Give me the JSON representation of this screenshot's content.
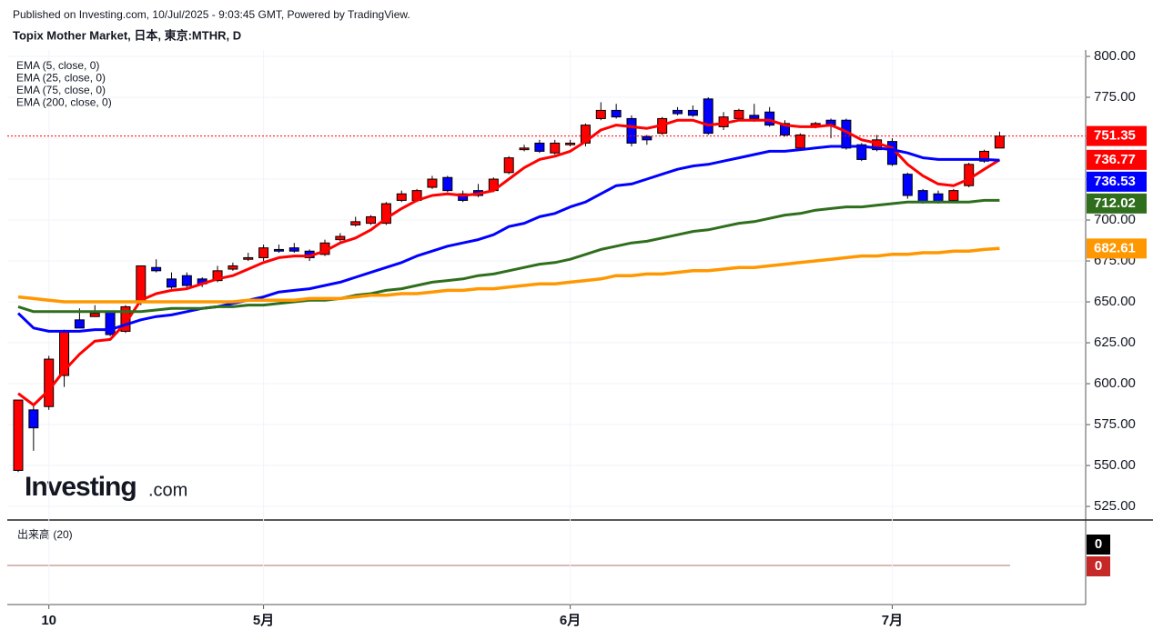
{
  "header": {
    "published": "Published on Investing.com, 10/Jul/2025 - 9:03:45 GMT, Powered by TradingView."
  },
  "watermark": {
    "name": "Investing",
    "suffix": ".com"
  },
  "chart_data": {
    "type": "candlestick",
    "title": "Topix Mother Market, 日本, 東京:MTHR, D",
    "categories": [
      null,
      null,
      "10",
      null,
      null,
      null,
      null,
      null,
      null,
      null,
      null,
      null,
      null,
      null,
      null,
      null,
      "5月",
      null,
      null,
      null,
      null,
      null,
      null,
      null,
      null,
      null,
      null,
      null,
      null,
      null,
      null,
      null,
      null,
      null,
      null,
      null,
      "6月",
      null,
      null,
      null,
      null,
      null,
      null,
      null,
      null,
      null,
      null,
      null,
      null,
      null,
      null,
      null,
      null,
      null,
      null,
      null,
      null,
      "7月",
      null,
      null,
      null,
      null,
      null,
      null,
      null
    ],
    "open": [
      547,
      584,
      586,
      605,
      639,
      641,
      644,
      632,
      650,
      671,
      664,
      666,
      664,
      663,
      670,
      676,
      677,
      682,
      683,
      681,
      679,
      688,
      697,
      698,
      698,
      712,
      712,
      720,
      726,
      716,
      718,
      718,
      729,
      743,
      747,
      741,
      746,
      747,
      762,
      767,
      762,
      751,
      753,
      767,
      767,
      774,
      757,
      762,
      764,
      766,
      759,
      744,
      757,
      761,
      761,
      746,
      743,
      748,
      728,
      718,
      716,
      712,
      721,
      736,
      744
    ],
    "high": [
      590,
      587,
      617,
      633,
      646,
      648,
      644,
      648,
      672,
      676,
      668,
      668,
      665,
      672,
      674,
      680,
      685,
      685,
      686,
      682,
      688,
      692,
      702,
      703,
      711,
      718,
      719,
      727,
      727,
      718,
      722,
      726,
      739,
      746,
      749,
      749,
      749,
      759,
      772,
      771,
      764,
      752,
      763,
      769,
      770,
      775,
      766,
      768,
      771,
      769,
      761,
      753,
      760,
      762,
      762,
      747,
      752,
      750,
      729,
      719,
      718,
      719,
      735,
      743,
      754
    ],
    "low": [
      546,
      559,
      584,
      598,
      634,
      641,
      629,
      631,
      648,
      668,
      658,
      658,
      659,
      662,
      669,
      675,
      675,
      680,
      680,
      675,
      678,
      687,
      696,
      697,
      697,
      711,
      711,
      719,
      717,
      711,
      714,
      717,
      728,
      742,
      741,
      740,
      745,
      745,
      761,
      762,
      745,
      746,
      752,
      764,
      763,
      752,
      755,
      761,
      760,
      757,
      751,
      743,
      756,
      750,
      743,
      736,
      742,
      733,
      713,
      710,
      710,
      711,
      720,
      735,
      744
    ],
    "close": [
      590,
      573,
      615,
      632,
      634,
      643,
      630,
      647,
      672,
      669,
      659,
      660,
      661,
      669,
      672,
      677,
      683,
      681,
      681,
      677,
      686,
      690,
      699,
      702,
      710,
      716,
      718,
      725,
      718,
      712,
      715,
      725,
      738,
      744,
      742,
      747,
      747,
      758,
      767,
      763,
      747,
      749,
      762,
      765,
      764,
      753,
      763,
      767,
      762,
      758,
      752,
      752,
      759,
      758,
      744,
      737,
      749,
      734,
      715,
      711,
      711,
      718,
      734,
      742,
      751.35
    ],
    "up_color": "#ff0000",
    "down_color": "#0000ff",
    "series": [
      {
        "name": "EMA (5, close, 0)",
        "color": "#ff0000",
        "values": [
          594,
          587,
          596,
          608,
          618,
          626,
          627,
          637,
          651,
          655,
          657,
          658,
          661,
          664,
          666,
          670,
          674,
          677,
          678,
          678,
          681,
          686,
          689,
          694,
          701,
          707,
          712,
          715,
          716,
          715,
          716,
          718,
          725,
          732,
          737,
          739,
          742,
          748,
          755,
          758,
          757,
          756,
          758,
          761,
          761,
          758,
          759,
          761,
          761,
          761,
          758,
          757,
          757,
          758,
          754,
          749,
          747,
          744,
          734,
          727,
          722,
          721,
          725,
          731,
          736.77
        ]
      },
      {
        "name": "EMA (25, close, 0)",
        "color": "#0000ff",
        "values": [
          643,
          634,
          632,
          632,
          632,
          633,
          633,
          636,
          639,
          641,
          642,
          644,
          646,
          647,
          649,
          651,
          653,
          656,
          657,
          658,
          660,
          662,
          665,
          668,
          671,
          674,
          678,
          681,
          684,
          686,
          688,
          691,
          696,
          698,
          702,
          704,
          708,
          711,
          716,
          721,
          722,
          725,
          728,
          731,
          733,
          734,
          736,
          738,
          740,
          742,
          742,
          743,
          744,
          745,
          745,
          745,
          744,
          743,
          741,
          738,
          737,
          737,
          737,
          737,
          736.53
        ]
      },
      {
        "name": "EMA (75, close, 0)",
        "color": "#2f6e1c",
        "values": [
          647,
          644,
          644,
          644,
          644,
          644,
          644,
          644,
          644,
          645,
          646,
          646,
          646,
          647,
          647,
          648,
          648,
          649,
          650,
          651,
          651,
          652,
          654,
          655,
          657,
          658,
          660,
          662,
          663,
          664,
          666,
          667,
          669,
          671,
          673,
          674,
          676,
          679,
          682,
          684,
          686,
          687,
          689,
          691,
          693,
          694,
          696,
          698,
          699,
          701,
          703,
          704,
          706,
          707,
          708,
          708,
          709,
          710,
          711,
          711,
          711,
          711,
          711,
          712,
          712.02
        ]
      },
      {
        "name": "EMA (200, close, 0)",
        "color": "#ff9800",
        "values": [
          653,
          652,
          651,
          650,
          650,
          650,
          650,
          650,
          650,
          650,
          650,
          650,
          650,
          650,
          650,
          651,
          651,
          651,
          651,
          652,
          652,
          652,
          653,
          654,
          654,
          655,
          655,
          656,
          657,
          657,
          658,
          658,
          659,
          660,
          661,
          661,
          662,
          663,
          664,
          666,
          666,
          667,
          667,
          668,
          669,
          669,
          670,
          671,
          671,
          672,
          673,
          674,
          675,
          676,
          677,
          678,
          678,
          679,
          679,
          680,
          680,
          681,
          681,
          682,
          682.61
        ]
      }
    ],
    "ylim": [
      516.7,
      803.9
    ],
    "yticks": [
      {
        "value": 525,
        "label": "525.00"
      },
      {
        "value": 550,
        "label": "550.00"
      },
      {
        "value": 575,
        "label": "575.00"
      },
      {
        "value": 600,
        "label": "600.00"
      },
      {
        "value": 625,
        "label": "625.00"
      },
      {
        "value": 650,
        "label": "650.00"
      },
      {
        "value": 675,
        "label": "675.00"
      },
      {
        "value": 700,
        "label": "700.00"
      },
      {
        "value": 725,
        "label": "725.00"
      },
      {
        "value": 750,
        "label": "750.00"
      },
      {
        "value": 775,
        "label": "775.00"
      },
      {
        "value": 800,
        "label": "800.00"
      }
    ],
    "grid": true,
    "volume": {
      "title": "出来高 (20)",
      "values": [
        0,
        0
      ],
      "colors": [
        "#000000",
        "#c62828"
      ]
    }
  }
}
